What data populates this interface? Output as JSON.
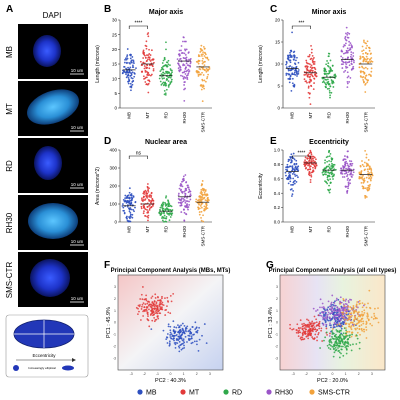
{
  "panel_letters": [
    "A",
    "B",
    "C",
    "D",
    "E",
    "F",
    "G"
  ],
  "images": {
    "title": "DAPI",
    "rows": [
      {
        "label": "MB",
        "scale": "10 um"
      },
      {
        "label": "MT",
        "scale": "10 um"
      },
      {
        "label": "RD",
        "scale": "10 um"
      },
      {
        "label": "RH30",
        "scale": "10 um"
      },
      {
        "label": "SMS-CTR",
        "scale": "10 um"
      }
    ],
    "schematic": {
      "label": "Eccentricity",
      "left": "Increasingly elliptical",
      "right": ""
    }
  },
  "colors": {
    "MB": "#2d4fbf",
    "MT": "#e23a3a",
    "RD": "#2fa84a",
    "RH30": "#9a55c8",
    "SMS-CTR": "#f2a23c"
  },
  "chart_data": [
    {
      "type": "scatter",
      "panel": "B",
      "title": "Major axis",
      "ylabel": "Length (microns)",
      "categories": [
        "MB",
        "MT",
        "RD",
        "RH30",
        "SMS-CTR"
      ],
      "ylim": [
        0,
        30
      ],
      "yticks": [
        0,
        5,
        10,
        15,
        20,
        25,
        30
      ],
      "center": [
        13,
        15,
        11,
        16,
        14
      ],
      "spread": [
        3.5,
        4,
        3,
        4,
        3.5
      ],
      "significance": {
        "from": "MB",
        "to": "MT",
        "label": "****"
      }
    },
    {
      "type": "scatter",
      "panel": "C",
      "title": "Minor axis",
      "ylabel": "Length (microns)",
      "categories": [
        "MB",
        "MT",
        "RD",
        "RH30",
        "SMS-CTR"
      ],
      "ylim": [
        0,
        20
      ],
      "yticks": [
        0,
        5,
        10,
        15,
        20
      ],
      "center": [
        9,
        8,
        7,
        11,
        10
      ],
      "spread": [
        2.5,
        2.5,
        2,
        3,
        3
      ],
      "significance": {
        "from": "MB",
        "to": "MT",
        "label": "***"
      }
    },
    {
      "type": "scatter",
      "panel": "D",
      "title": "Nuclear area",
      "ylabel": "Area (microns^2)",
      "categories": [
        "MB",
        "MT",
        "RD",
        "RH30",
        "SMS-CTR"
      ],
      "ylim": [
        0,
        400
      ],
      "yticks": [
        0,
        100,
        200,
        300,
        400
      ],
      "center": [
        90,
        100,
        60,
        140,
        110
      ],
      "spread": [
        45,
        50,
        35,
        55,
        45
      ],
      "significance": {
        "from": "MB",
        "to": "MT",
        "label": "ns"
      }
    },
    {
      "type": "scatter",
      "panel": "E",
      "title": "Eccentricity",
      "ylabel": "Eccentricity",
      "categories": [
        "MB",
        "MT",
        "RD",
        "RH30",
        "SMS-CTR"
      ],
      "ylim": [
        0,
        1
      ],
      "yticks": [
        0.0,
        0.2,
        0.4,
        0.6,
        0.8,
        1.0
      ],
      "center": [
        0.7,
        0.82,
        0.72,
        0.72,
        0.66
      ],
      "spread": [
        0.12,
        0.08,
        0.12,
        0.12,
        0.14
      ],
      "significance": {
        "from": "MB",
        "to": "MT",
        "label": "****"
      }
    },
    {
      "type": "scatter",
      "panel": "F",
      "title": "Principal Component Analysis (MBs, MTs)",
      "xlabel": "PC2 : 40.3%",
      "ylabel": "PC1 : 45.9%",
      "series": [
        {
          "name": "MB",
          "cx": 0.8,
          "cy": -1.2,
          "sx": 1.2,
          "sy": 0.9
        },
        {
          "name": "MT",
          "cx": -1.3,
          "cy": 1.3,
          "sx": 1.0,
          "sy": 0.9
        }
      ],
      "xlim": [
        -4,
        4
      ],
      "ylim": [
        -4,
        4
      ],
      "xticks": [
        -3,
        -2,
        -1,
        0,
        1,
        2,
        3
      ],
      "yticks": [
        -3,
        -2,
        -1,
        0,
        1,
        2,
        3
      ]
    },
    {
      "type": "scatter",
      "panel": "G",
      "title": "Principal Component Analysis (all cell types)",
      "xlabel": "PC2 : 20.0%",
      "ylabel": "PC1 : 33.4%",
      "series": [
        {
          "name": "MB",
          "cx": 0.3,
          "cy": 0.5,
          "sx": 0.9,
          "sy": 0.9
        },
        {
          "name": "MT",
          "cx": -1.8,
          "cy": -0.6,
          "sx": 0.9,
          "sy": 0.8
        },
        {
          "name": "RD",
          "cx": 0.5,
          "cy": -1.6,
          "sx": 0.9,
          "sy": 0.8
        },
        {
          "name": "RH30",
          "cx": 0.6,
          "cy": 0.9,
          "sx": 1.2,
          "sy": 1.0
        },
        {
          "name": "SMS-CTR",
          "cx": 1.8,
          "cy": 0.3,
          "sx": 1.2,
          "sy": 1.2
        }
      ],
      "xlim": [
        -4,
        4
      ],
      "ylim": [
        -4,
        4
      ],
      "xticks": [
        -3,
        -2,
        -1,
        0,
        1,
        2,
        3
      ],
      "yticks": [
        -3,
        -2,
        -1,
        0,
        1,
        2,
        3
      ]
    }
  ],
  "legend": {
    "items": [
      "MB",
      "MT",
      "RD",
      "RH30",
      "SMS-CTR"
    ]
  }
}
